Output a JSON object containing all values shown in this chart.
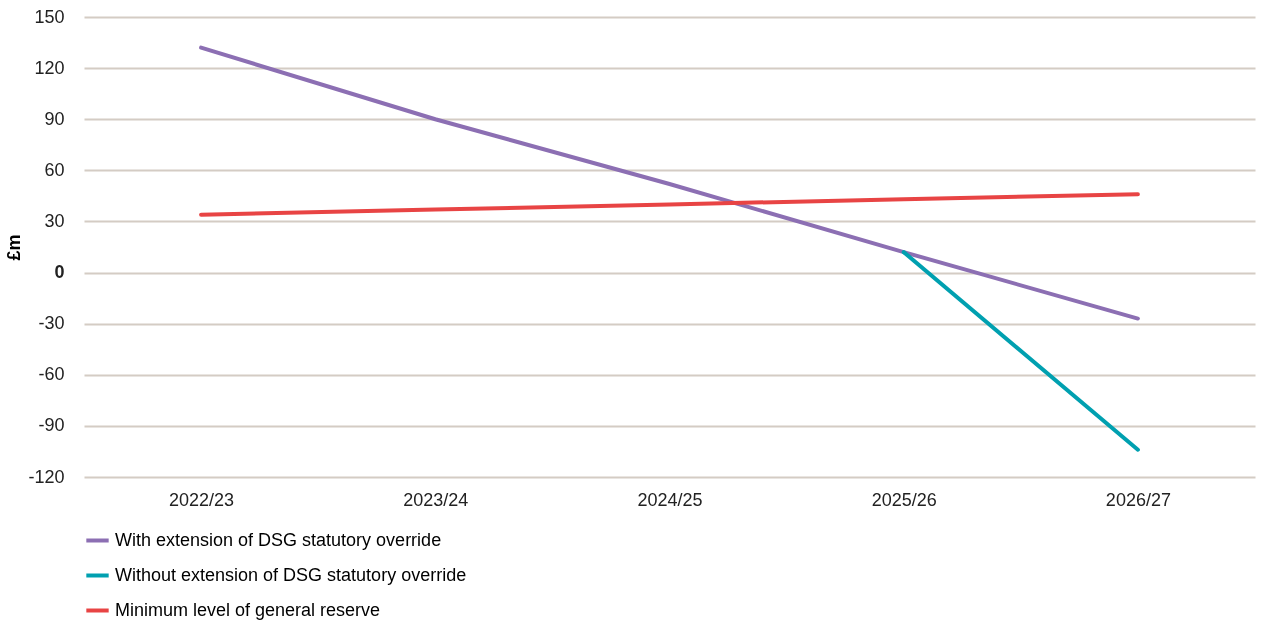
{
  "chart_data": {
    "type": "line",
    "ylabel": "£m",
    "categories": [
      "2022/23",
      "2023/24",
      "2024/25",
      "2025/26",
      "2026/27"
    ],
    "series": [
      {
        "name": "With extension of DSG statutory override",
        "color": "#8c6fb3",
        "values": [
          132,
          90,
          52,
          12,
          -27
        ]
      },
      {
        "name": "Without extension of DSG statutory override",
        "color": "#00a0b0",
        "values": [
          null,
          null,
          null,
          12,
          -104
        ]
      },
      {
        "name": "Minimum level of general reserve",
        "color": "#e84444",
        "values": [
          34,
          37,
          40,
          43,
          46
        ]
      }
    ],
    "ylim": [
      -120,
      150
    ],
    "yticks": [
      -120,
      -90,
      -60,
      -30,
      0,
      30,
      60,
      90,
      120,
      150
    ],
    "grid": "y",
    "legend": "bottom",
    "marker": "none",
    "line_style": "solid"
  }
}
